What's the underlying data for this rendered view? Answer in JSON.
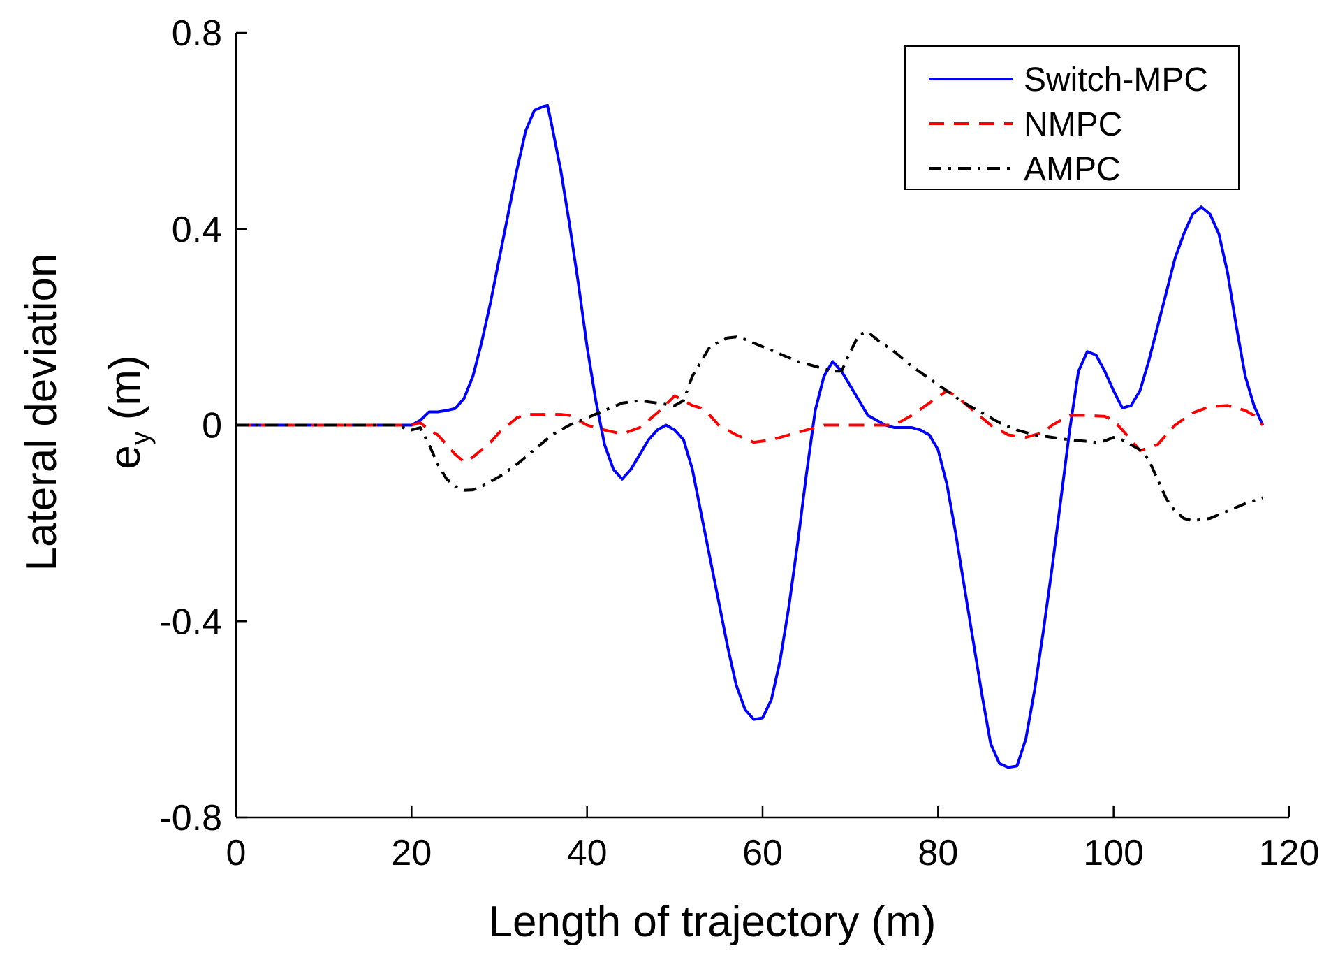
{
  "chart_data": {
    "type": "line",
    "title": "",
    "xlabel": "Length of trajectory (m)",
    "ylabel_main": "Lateral deviation",
    "ylabel_symbol": "e",
    "ylabel_subscript": "y",
    "ylabel_unit": "(m)",
    "xlim": [
      0,
      120
    ],
    "ylim": [
      -0.8,
      0.8
    ],
    "x_ticks": [
      0,
      20,
      40,
      60,
      80,
      100,
      120
    ],
    "x_tick_labels": [
      "0",
      "20",
      "40",
      "60",
      "80",
      "100",
      "120"
    ],
    "y_ticks": [
      0.8,
      0.4,
      0,
      -0.4,
      -0.8
    ],
    "y_tick_labels": [
      "0.8",
      "0.4",
      "0",
      "-0.4",
      "-0.8"
    ],
    "grid": false,
    "legend_position": "top-right",
    "series": [
      {
        "name": "Switch-MPC",
        "color": "#0000ff",
        "dash": "solid",
        "points": [
          [
            0,
            0
          ],
          [
            10,
            0
          ],
          [
            20,
            0
          ],
          [
            21,
            0.01
          ],
          [
            22,
            0.027
          ],
          [
            23,
            0.027
          ],
          [
            24,
            0.03
          ],
          [
            25,
            0.034
          ],
          [
            26,
            0.055
          ],
          [
            27,
            0.1
          ],
          [
            28,
            0.17
          ],
          [
            29,
            0.25
          ],
          [
            30,
            0.34
          ],
          [
            31,
            0.43
          ],
          [
            32,
            0.52
          ],
          [
            33,
            0.6
          ],
          [
            34,
            0.642
          ],
          [
            35,
            0.65
          ],
          [
            35.5,
            0.652
          ],
          [
            36,
            0.61
          ],
          [
            37,
            0.52
          ],
          [
            38,
            0.41
          ],
          [
            39,
            0.29
          ],
          [
            40,
            0.16
          ],
          [
            41,
            0.05
          ],
          [
            42,
            -0.04
          ],
          [
            43,
            -0.09
          ],
          [
            44,
            -0.11
          ],
          [
            45,
            -0.09
          ],
          [
            46,
            -0.06
          ],
          [
            47,
            -0.03
          ],
          [
            48,
            -0.01
          ],
          [
            49,
            0.0
          ],
          [
            50,
            -0.01
          ],
          [
            51,
            -0.03
          ],
          [
            52,
            -0.09
          ],
          [
            53,
            -0.18
          ],
          [
            54,
            -0.27
          ],
          [
            55,
            -0.36
          ],
          [
            56,
            -0.45
          ],
          [
            57,
            -0.53
          ],
          [
            58,
            -0.58
          ],
          [
            59,
            -0.6
          ],
          [
            60,
            -0.597
          ],
          [
            61,
            -0.56
          ],
          [
            62,
            -0.48
          ],
          [
            63,
            -0.37
          ],
          [
            64,
            -0.24
          ],
          [
            65,
            -0.1
          ],
          [
            66,
            0.03
          ],
          [
            67,
            0.1
          ],
          [
            68,
            0.13
          ],
          [
            69,
            0.11
          ],
          [
            70,
            0.08
          ],
          [
            71,
            0.05
          ],
          [
            72,
            0.02
          ],
          [
            73,
            0.01
          ],
          [
            74,
            0.0
          ],
          [
            75,
            -0.005
          ],
          [
            76,
            -0.005
          ],
          [
            77,
            -0.005
          ],
          [
            78,
            -0.01
          ],
          [
            79,
            -0.02
          ],
          [
            80,
            -0.05
          ],
          [
            81,
            -0.12
          ],
          [
            82,
            -0.22
          ],
          [
            83,
            -0.33
          ],
          [
            84,
            -0.44
          ],
          [
            85,
            -0.55
          ],
          [
            86,
            -0.65
          ],
          [
            87,
            -0.69
          ],
          [
            88,
            -0.698
          ],
          [
            89,
            -0.695
          ],
          [
            90,
            -0.64
          ],
          [
            91,
            -0.54
          ],
          [
            92,
            -0.42
          ],
          [
            93,
            -0.29
          ],
          [
            94,
            -0.15
          ],
          [
            95,
            -0.01
          ],
          [
            96,
            0.11
          ],
          [
            97,
            0.15
          ],
          [
            98,
            0.143
          ],
          [
            99,
            0.11
          ],
          [
            100,
            0.07
          ],
          [
            101,
            0.035
          ],
          [
            102,
            0.04
          ],
          [
            103,
            0.07
          ],
          [
            104,
            0.13
          ],
          [
            105,
            0.2
          ],
          [
            106,
            0.27
          ],
          [
            107,
            0.34
          ],
          [
            108,
            0.39
          ],
          [
            109,
            0.43
          ],
          [
            110,
            0.445
          ],
          [
            111,
            0.43
          ],
          [
            112,
            0.39
          ],
          [
            113,
            0.31
          ],
          [
            114,
            0.2
          ],
          [
            115,
            0.1
          ],
          [
            116,
            0.04
          ],
          [
            117,
            0.0
          ]
        ]
      },
      {
        "name": "NMPC",
        "color": "#ff0000",
        "dash": "dashed",
        "points": [
          [
            0,
            0
          ],
          [
            10,
            0
          ],
          [
            20,
            0
          ],
          [
            21,
            0.005
          ],
          [
            22,
            -0.01
          ],
          [
            23,
            -0.02
          ],
          [
            24,
            -0.04
          ],
          [
            25,
            -0.06
          ],
          [
            26,
            -0.075
          ],
          [
            27,
            -0.065
          ],
          [
            28,
            -0.05
          ],
          [
            29,
            -0.035
          ],
          [
            30,
            -0.015
          ],
          [
            31,
            0.0
          ],
          [
            32,
            0.015
          ],
          [
            33,
            0.022
          ],
          [
            35,
            0.022
          ],
          [
            37,
            0.022
          ],
          [
            38,
            0.02
          ],
          [
            40,
            0.0
          ],
          [
            42,
            -0.01
          ],
          [
            44,
            -0.018
          ],
          [
            46,
            -0.005
          ],
          [
            48,
            0.025
          ],
          [
            50,
            0.06
          ],
          [
            51,
            0.05
          ],
          [
            52,
            0.04
          ],
          [
            53,
            0.035
          ],
          [
            54,
            0.02
          ],
          [
            55,
            0.0
          ],
          [
            57,
            -0.02
          ],
          [
            59,
            -0.035
          ],
          [
            61,
            -0.03
          ],
          [
            63,
            -0.02
          ],
          [
            65,
            -0.01
          ],
          [
            67,
            0.0
          ],
          [
            69,
            0.0
          ],
          [
            71,
            0.0
          ],
          [
            73,
            0.0
          ],
          [
            75,
            0.0
          ],
          [
            77,
            0.02
          ],
          [
            79,
            0.045
          ],
          [
            81,
            0.07
          ],
          [
            82,
            0.06
          ],
          [
            84,
            0.03
          ],
          [
            86,
            0.0
          ],
          [
            88,
            -0.02
          ],
          [
            90,
            -0.025
          ],
          [
            92,
            -0.015
          ],
          [
            93,
            0.0
          ],
          [
            95,
            0.02
          ],
          [
            97,
            0.02
          ],
          [
            99,
            0.018
          ],
          [
            100,
            0.01
          ],
          [
            102,
            -0.03
          ],
          [
            103,
            -0.052
          ],
          [
            105,
            -0.04
          ],
          [
            106,
            -0.02
          ],
          [
            107,
            0.0
          ],
          [
            109,
            0.025
          ],
          [
            111,
            0.038
          ],
          [
            113,
            0.04
          ],
          [
            115,
            0.03
          ],
          [
            116,
            0.02
          ],
          [
            117,
            0.0
          ]
        ]
      },
      {
        "name": "AMPC",
        "color": "#000000",
        "dash": "dashdot",
        "points": [
          [
            0,
            0
          ],
          [
            10,
            0
          ],
          [
            18,
            0
          ],
          [
            19,
            -0.005
          ],
          [
            20,
            -0.01
          ],
          [
            21,
            -0.005
          ],
          [
            22,
            -0.04
          ],
          [
            23,
            -0.08
          ],
          [
            24,
            -0.11
          ],
          [
            25,
            -0.125
          ],
          [
            26,
            -0.133
          ],
          [
            27,
            -0.132
          ],
          [
            28,
            -0.125
          ],
          [
            30,
            -0.105
          ],
          [
            32,
            -0.08
          ],
          [
            34,
            -0.05
          ],
          [
            36,
            -0.02
          ],
          [
            38,
            0.0
          ],
          [
            40,
            0.015
          ],
          [
            42,
            0.03
          ],
          [
            44,
            0.045
          ],
          [
            46,
            0.05
          ],
          [
            48,
            0.045
          ],
          [
            50,
            0.04
          ],
          [
            51,
            0.05
          ],
          [
            52,
            0.1
          ],
          [
            54,
            0.16
          ],
          [
            56,
            0.178
          ],
          [
            57,
            0.18
          ],
          [
            58,
            0.175
          ],
          [
            60,
            0.16
          ],
          [
            62,
            0.145
          ],
          [
            64,
            0.13
          ],
          [
            66,
            0.12
          ],
          [
            68,
            0.11
          ],
          [
            69,
            0.11
          ],
          [
            70,
            0.15
          ],
          [
            71,
            0.185
          ],
          [
            72,
            0.19
          ],
          [
            73,
            0.175
          ],
          [
            75,
            0.15
          ],
          [
            77,
            0.12
          ],
          [
            79,
            0.095
          ],
          [
            81,
            0.07
          ],
          [
            83,
            0.045
          ],
          [
            85,
            0.025
          ],
          [
            87,
            0.005
          ],
          [
            89,
            -0.01
          ],
          [
            91,
            -0.02
          ],
          [
            93,
            -0.025
          ],
          [
            95,
            -0.03
          ],
          [
            97,
            -0.033
          ],
          [
            98,
            -0.035
          ],
          [
            99,
            -0.032
          ],
          [
            100,
            -0.025
          ],
          [
            101,
            -0.03
          ],
          [
            102,
            -0.04
          ],
          [
            103,
            -0.05
          ],
          [
            104,
            -0.07
          ],
          [
            105,
            -0.11
          ],
          [
            106,
            -0.15
          ],
          [
            107,
            -0.175
          ],
          [
            108,
            -0.19
          ],
          [
            109,
            -0.195
          ],
          [
            111,
            -0.19
          ],
          [
            113,
            -0.175
          ],
          [
            115,
            -0.16
          ],
          [
            117,
            -0.148
          ]
        ]
      }
    ]
  }
}
